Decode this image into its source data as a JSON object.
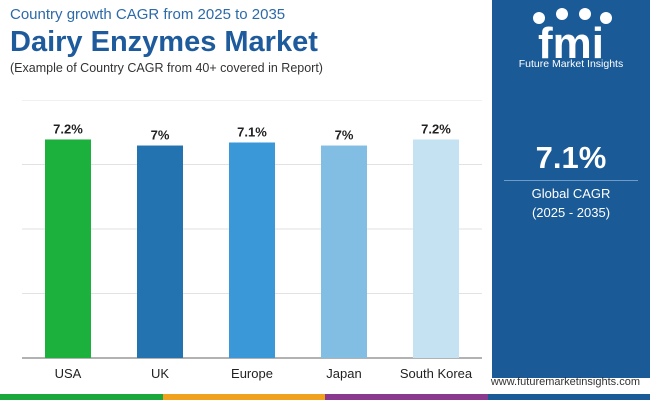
{
  "header": {
    "subtitle": "Country growth CAGR from 2025 to 2035",
    "title": "Dairy Enzymes Market",
    "note": "(Example of Country CAGR from 40+ covered in Report)"
  },
  "brand": {
    "logo_text": "fmi",
    "name": "Future Market Insights",
    "website": "www.futuremarketinsights.com"
  },
  "kpi": {
    "value": "7.1%",
    "label": "Global CAGR",
    "period": "(2025 - 2035)"
  },
  "colors": {
    "panel": "#1a5a96",
    "bottom_bar": [
      "#1aa83c",
      "#f0a21e",
      "#8a3a8e",
      "#1a5a96"
    ]
  },
  "chart_data": {
    "type": "bar",
    "categories": [
      "USA",
      "UK",
      "Europe",
      "Japan",
      "South Korea"
    ],
    "values": [
      7.2,
      7.0,
      7.1,
      7.0,
      7.2
    ],
    "value_labels": [
      "7.2%",
      "7%",
      "7.1%",
      "7%",
      "7.2%"
    ],
    "bar_colors": [
      "#1bb13c",
      "#2373b0",
      "#3a97d8",
      "#82bde3",
      "#c5e2f2"
    ],
    "ylim": [
      0,
      8.5
    ],
    "grid": true,
    "title": "",
    "xlabel": "",
    "ylabel": ""
  }
}
